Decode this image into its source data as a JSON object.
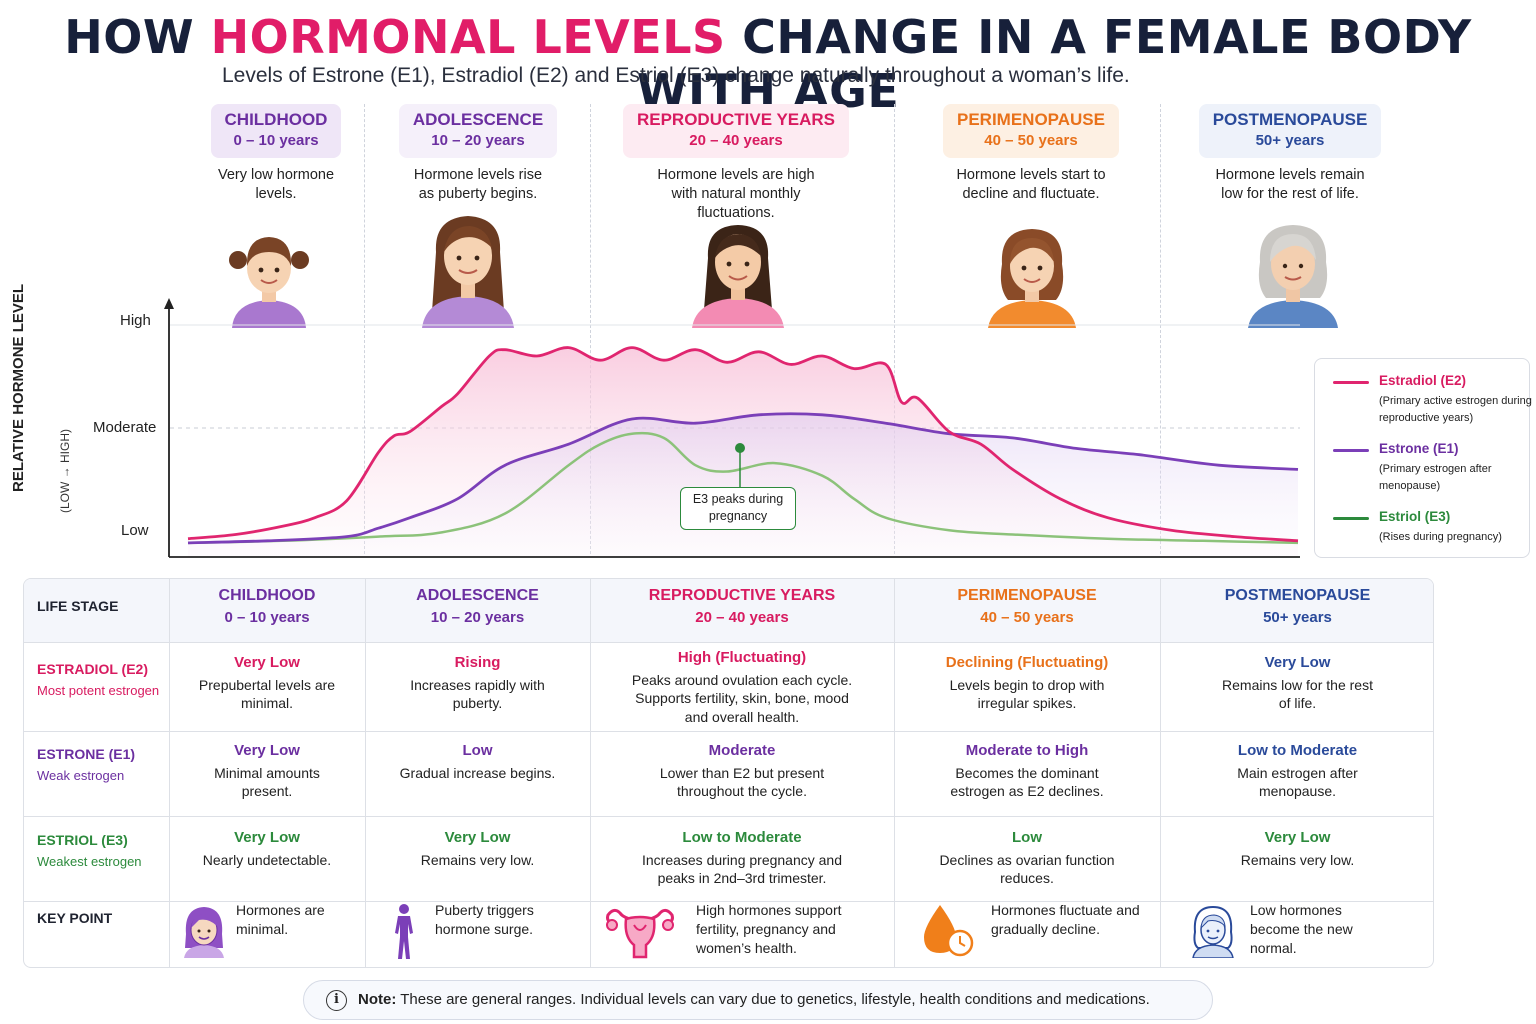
{
  "title": {
    "part1": "HOW ",
    "accent": "HORMONAL LEVELS",
    "part2": " CHANGE IN A FEMALE BODY WITH AGE"
  },
  "subtitle": "Levels of Estrone (E1), Estradiol (E2) and Estriol (E3) change naturally throughout a woman’s life.",
  "colors": {
    "e2": "#e0256f",
    "e1": "#7b3fb8",
    "e3": "#8cc27a",
    "e3_dark": "#2c8a3c",
    "childhood": "#6b2fa0",
    "adolescence": "#6b2fa0",
    "reproductive": "#d81b60",
    "perimenopause": "#e8711a",
    "postmenopause": "#2a4a9a"
  },
  "stages": [
    {
      "name": "CHILDHOOD",
      "years": "0 – 10 years",
      "desc": "Very low hormone levels.",
      "color": "#6b2fa0",
      "bg": "#efe6f7",
      "avatar": "girl-child-avatar"
    },
    {
      "name": "ADOLESCENCE",
      "years": "10 – 20 years",
      "desc": "Hormone levels rise as puberty begins.",
      "color": "#6b2fa0",
      "bg": "#f5f0fa",
      "avatar": "teen-girl-avatar"
    },
    {
      "name": "REPRODUCTIVE YEARS",
      "years": "20 – 40 years",
      "desc": "Hormone levels are high with natural monthly fluctuations.",
      "color": "#d81b60",
      "bg": "#fdebf2",
      "avatar": "young-woman-avatar"
    },
    {
      "name": "PERIMENOPAUSE",
      "years": "40 – 50 years",
      "desc": "Hormone levels start to decline and fluctuate.",
      "color": "#e8711a",
      "bg": "#fdf0e3",
      "avatar": "middle-aged-woman-avatar"
    },
    {
      "name": "POSTMENOPAUSE",
      "years": "50+ years",
      "desc": "Hormone levels remain low for the rest of life.",
      "color": "#2a4a9a",
      "bg": "#eef2fa",
      "avatar": "older-woman-avatar"
    }
  ],
  "chart_data": {
    "type": "line",
    "title": "",
    "ylabel": "RELATIVE HORMONE LEVEL",
    "ylabel_sub": "(LOW → HIGH)",
    "yticks": [
      "Low",
      "Moderate",
      "High"
    ],
    "ylim": [
      0,
      100
    ],
    "xlim": [
      0,
      70
    ],
    "x_axis": "age (years), grouped by life stage",
    "categories": [
      "Childhood",
      "Adolescence",
      "Reproductive Years",
      "Perimenopause",
      "Postmenopause"
    ],
    "series": [
      {
        "name": "Estradiol (E2)",
        "note": "(Primary active estrogen during reproductive years)",
        "color": "#e0256f",
        "x": [
          0,
          3,
          6,
          8,
          10,
          12,
          13,
          14,
          16,
          17,
          19,
          20,
          22,
          24,
          26,
          28,
          30,
          32,
          34,
          36,
          38,
          40,
          42,
          44,
          45,
          46,
          48,
          50,
          52,
          55,
          58,
          62,
          66,
          70
        ],
        "y": [
          3,
          5,
          9,
          13,
          21,
          44,
          52,
          54,
          66,
          72,
          90,
          93,
          90,
          94,
          88,
          94,
          88,
          93,
          87,
          92,
          86,
          90,
          84,
          86,
          68,
          70,
          54,
          48,
          36,
          22,
          13,
          7,
          4,
          2
        ]
      },
      {
        "name": "Estrone (E1)",
        "note": "(Primary estrogen after menopause)",
        "color": "#7b3fb8",
        "x": [
          0,
          5,
          10,
          12,
          14,
          17,
          20,
          24,
          28,
          32,
          36,
          40,
          44,
          48,
          52,
          56,
          60,
          65,
          70
        ],
        "y": [
          1,
          2,
          4,
          8,
          13,
          22,
          38,
          48,
          60,
          58,
          62,
          62,
          58,
          53,
          51,
          46,
          43,
          38,
          36
        ]
      },
      {
        "name": "Estriol (E3)",
        "note": "(Rises during pregnancy)",
        "color": "#8cc27a",
        "x": [
          0,
          6,
          12,
          16,
          20,
          24,
          26,
          28,
          30,
          32,
          34,
          37,
          40,
          42,
          44,
          48,
          52,
          58,
          64,
          70
        ],
        "y": [
          1,
          2,
          4,
          6,
          15,
          38,
          48,
          53,
          51,
          38,
          35,
          39,
          33,
          22,
          13,
          7,
          5,
          3,
          2,
          1
        ]
      }
    ],
    "annotation": {
      "text": "E3 peaks during pregnancy",
      "series": "Estriol (E3)"
    },
    "legend": "right"
  },
  "table": {
    "header_label": "LIFE STAGE",
    "rows": [
      {
        "name": "ESTRADIOL (E2)",
        "sub": "Most potent estrogen",
        "color": "#d81b60",
        "cells": [
          {
            "level": "Very Low",
            "text": "Prepubertal levels are minimal.",
            "color": "#d81b60"
          },
          {
            "level": "Rising",
            "text": "Increases rapidly with puberty.",
            "color": "#d81b60"
          },
          {
            "level": "High (Fluctuating)",
            "text": "Peaks around ovulation each cycle. Supports fertility, skin, bone, mood and overall health.",
            "color": "#d81b60"
          },
          {
            "level": "Declining (Fluctuating)",
            "text": "Levels begin to drop with irregular spikes.",
            "color": "#e8711a"
          },
          {
            "level": "Very Low",
            "text": "Remains low for the rest of life.",
            "color": "#2a4a9a"
          }
        ]
      },
      {
        "name": "ESTRONE (E1)",
        "sub": "Weak estrogen",
        "color": "#6b2fa0",
        "cells": [
          {
            "level": "Very Low",
            "text": "Minimal amounts present.",
            "color": "#6b2fa0"
          },
          {
            "level": "Low",
            "text": "Gradual increase begins.",
            "color": "#6b2fa0"
          },
          {
            "level": "Moderate",
            "text": "Lower than E2 but present throughout the cycle.",
            "color": "#6b2fa0"
          },
          {
            "level": "Moderate to High",
            "text": "Becomes the dominant estrogen as E2 declines.",
            "color": "#6b2fa0"
          },
          {
            "level": "Low to Moderate",
            "text": "Main estrogen after menopause.",
            "color": "#2a4a9a"
          }
        ]
      },
      {
        "name": "ESTRIOL (E3)",
        "sub": "Weakest estrogen",
        "color": "#2c8a3c",
        "cells": [
          {
            "level": "Very Low",
            "text": "Nearly undetectable.",
            "color": "#2c8a3c"
          },
          {
            "level": "Very Low",
            "text": "Remains very low.",
            "color": "#2c8a3c"
          },
          {
            "level": "Low to Moderate",
            "text": "Increases during pregnancy and peaks in 2nd–3rd trimester.",
            "color": "#2c8a3c"
          },
          {
            "level": "Low",
            "text": "Declines as ovarian function reduces.",
            "color": "#2c8a3c"
          },
          {
            "level": "Very Low",
            "text": "Remains very low.",
            "color": "#2c8a3c"
          }
        ]
      }
    ],
    "key_point": {
      "label": "KEY POINT",
      "items": [
        {
          "text": "Hormones are minimal.",
          "icon": "girl-face-icon"
        },
        {
          "text": "Puberty triggers hormone surge.",
          "icon": "body-silhouette-icon"
        },
        {
          "text": "High hormones support fertility, pregnancy and women’s health.",
          "icon": "uterus-icon"
        },
        {
          "text": "Hormones fluctuate and gradually decline.",
          "icon": "drop-clock-icon"
        },
        {
          "text": "Low hormones become the new normal.",
          "icon": "older-woman-face-icon"
        }
      ]
    }
  },
  "note": {
    "bold": "Note:",
    "text": " These are general ranges. Individual levels can vary due to genetics, lifestyle, health conditions and medications.",
    "icon": "info-icon"
  }
}
